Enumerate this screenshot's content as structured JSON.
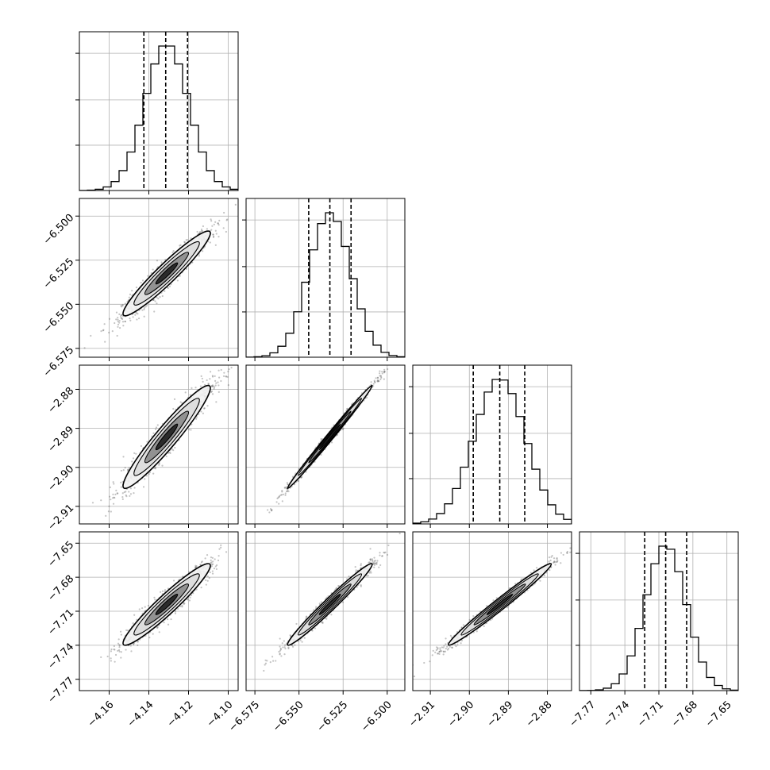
{
  "chart_data": {
    "type": "corner",
    "title": "",
    "grid": true,
    "parameters": [
      {
        "axis_range": [
          -4.175,
          -4.095
        ],
        "ticks": [
          -4.16,
          -4.14,
          -4.12,
          -4.1
        ],
        "tick_labels": [
          "−4.16",
          "−4.14",
          "−4.12",
          "−4.10"
        ],
        "quantiles": [
          -4.1425,
          -4.1315,
          -4.1205
        ],
        "mean": -4.131,
        "std": 0.011
      },
      {
        "axis_range": [
          -6.58,
          -6.49
        ],
        "ticks": [
          -6.575,
          -6.55,
          -6.525,
          -6.5
        ],
        "tick_labels": [
          "−6.575",
          "−6.550",
          "−6.525",
          "−6.500"
        ],
        "quantiles": [
          -6.5445,
          -6.5325,
          -6.5205
        ],
        "mean": -6.5325,
        "std": 0.012
      },
      {
        "axis_range": [
          -2.9145,
          -2.8738
        ],
        "ticks": [
          -2.91,
          -2.9,
          -2.89,
          -2.88
        ],
        "tick_labels": [
          "−2.91",
          "−2.90",
          "−2.89",
          "−2.88"
        ],
        "quantiles": [
          -2.899,
          -2.8922,
          -2.8858
        ],
        "mean": -2.8922,
        "std": 0.0066
      },
      {
        "axis_range": [
          -7.78,
          -7.64
        ],
        "ticks": [
          -7.77,
          -7.74,
          -7.71,
          -7.68,
          -7.65
        ],
        "tick_labels": [
          "−7.77",
          "−7.74",
          "−7.71",
          "−7.68",
          "−7.65"
        ],
        "quantiles": [
          -7.7225,
          -7.704,
          -7.6855
        ],
        "mean": -7.704,
        "std": 0.018
      }
    ],
    "correlations": [
      [
        1,
        0.95,
        0.95,
        0.95
      ],
      [
        0.95,
        1,
        0.995,
        0.98
      ],
      [
        0.95,
        0.995,
        1,
        0.985
      ],
      [
        0.95,
        0.98,
        0.985,
        1
      ]
    ],
    "histogram_bins": 20,
    "contour_levels_sigma": [
      0.5,
      1.0,
      1.5,
      2.0
    ],
    "samples_per_panel": 1200,
    "colors": {
      "line": "#000000",
      "points": "#555555",
      "grid": "#b0b0b0",
      "fill_dark": "#202020",
      "fill_mid": "#8a8a8a",
      "fill_light": "#dcdcdc",
      "fill_lightest": "#f2f2f2"
    }
  }
}
